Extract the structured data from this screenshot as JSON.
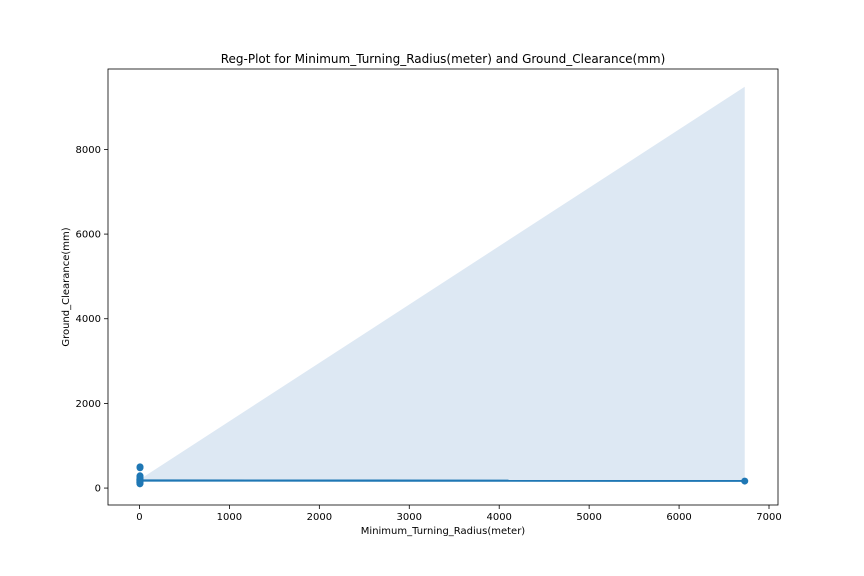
{
  "chart_data": {
    "type": "scatter",
    "title": "Reg-Plot for Minimum_Turning_Radius(meter) and Ground_Clearance(mm)",
    "xlabel": "Minimum_Turning_Radius(meter)",
    "ylabel": "Ground_Clearance(mm)",
    "xlim": [
      -350,
      7100
    ],
    "ylim": [
      -400,
      9900
    ],
    "xticks": [
      0,
      1000,
      2000,
      3000,
      4000,
      5000,
      6000,
      7000
    ],
    "yticks": [
      0,
      2000,
      4000,
      6000,
      8000
    ],
    "grid": false,
    "points": [
      {
        "x": 5.0,
        "y": 170
      },
      {
        "x": 5.2,
        "y": 165
      },
      {
        "x": 4.8,
        "y": 175
      },
      {
        "x": 5.5,
        "y": 180
      },
      {
        "x": 5.3,
        "y": 190
      },
      {
        "x": 4.9,
        "y": 200
      },
      {
        "x": 5.1,
        "y": 210
      },
      {
        "x": 5.4,
        "y": 220
      },
      {
        "x": 5.6,
        "y": 150
      },
      {
        "x": 5.0,
        "y": 140
      },
      {
        "x": 4.7,
        "y": 130
      },
      {
        "x": 5.2,
        "y": 120
      },
      {
        "x": 5.3,
        "y": 110
      },
      {
        "x": 5.1,
        "y": 100
      },
      {
        "x": 5.8,
        "y": 250
      },
      {
        "x": 5.5,
        "y": 270
      },
      {
        "x": 6.0,
        "y": 290
      },
      {
        "x": 5.9,
        "y": 480
      },
      {
        "x": 6.2,
        "y": 500
      },
      {
        "x": 6730,
        "y": 165
      }
    ],
    "regression_line": {
      "x": [
        0,
        6730
      ],
      "y": [
        178,
        172
      ]
    },
    "confidence_band": {
      "x": [
        0,
        6730
      ],
      "upper": [
        200,
        9480
      ],
      "lower": [
        150,
        160
      ]
    },
    "colors": {
      "points": "#1f77b4",
      "line": "#1f77b4",
      "band": "#dde8f3"
    }
  }
}
